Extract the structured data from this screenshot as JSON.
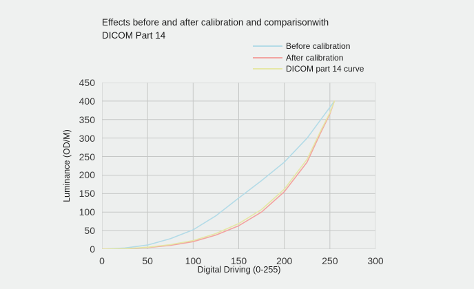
{
  "colors": {
    "background": "#eff1f0",
    "plot_background": "#edefee",
    "grid": "#c5c7c6",
    "tick_text": "#3a3a3a",
    "title_text": "#1c1c1c"
  },
  "chart_data": {
    "type": "line",
    "title": "Effects before and after calibration and comparisonwith\nDICOM Part 14",
    "xlabel": "Digital Driving (0-255)",
    "ylabel": "Luminance (OD/M)",
    "xlim": [
      0,
      300
    ],
    "ylim": [
      0,
      450
    ],
    "x_ticks": [
      0,
      50,
      100,
      150,
      200,
      250,
      300
    ],
    "y_ticks": [
      0,
      50,
      100,
      150,
      200,
      250,
      300,
      350,
      400,
      450
    ],
    "grid": true,
    "legend_position": "top-right",
    "series": [
      {
        "name": "Before calibration",
        "color": "#b3dbe7",
        "points": [
          [
            0,
            0
          ],
          [
            25,
            3
          ],
          [
            50,
            11
          ],
          [
            75,
            28
          ],
          [
            100,
            52
          ],
          [
            125,
            90
          ],
          [
            150,
            138
          ],
          [
            175,
            185
          ],
          [
            200,
            235
          ],
          [
            225,
            300
          ],
          [
            240,
            350
          ],
          [
            250,
            383
          ],
          [
            255,
            400
          ]
        ]
      },
      {
        "name": "After calibration",
        "color": "#f2a3a0",
        "points": [
          [
            0,
            0
          ],
          [
            25,
            1
          ],
          [
            50,
            4
          ],
          [
            75,
            10
          ],
          [
            100,
            20
          ],
          [
            125,
            38
          ],
          [
            150,
            63
          ],
          [
            175,
            100
          ],
          [
            200,
            155
          ],
          [
            225,
            235
          ],
          [
            240,
            315
          ],
          [
            250,
            365
          ],
          [
            255,
            400
          ]
        ]
      },
      {
        "name": "DICOM part 14 curve",
        "color": "#e5e7a5",
        "points": [
          [
            0,
            0
          ],
          [
            25,
            1
          ],
          [
            50,
            5
          ],
          [
            75,
            12
          ],
          [
            100,
            23
          ],
          [
            125,
            42
          ],
          [
            150,
            69
          ],
          [
            175,
            107
          ],
          [
            200,
            162
          ],
          [
            225,
            243
          ],
          [
            240,
            320
          ],
          [
            250,
            368
          ],
          [
            255,
            400
          ]
        ]
      }
    ]
  }
}
